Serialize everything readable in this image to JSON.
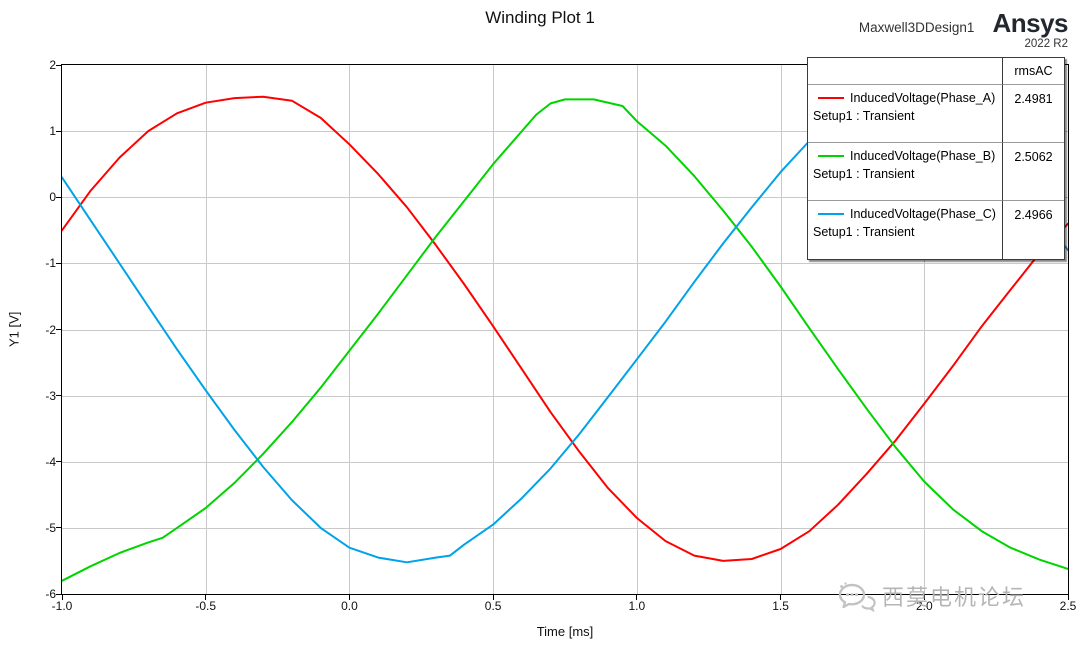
{
  "title": "Winding Plot 1",
  "header": {
    "design_name": "Maxwell3DDesign1",
    "brand": "Ansys",
    "version": "2022 R2"
  },
  "axes": {
    "x_title": "Time [ms]",
    "y_title": "Y1 [V]"
  },
  "legend": {
    "value_header": "rmsAC",
    "entries": [
      {
        "name": "InducedVoltage(Phase_A)",
        "setup": "Setup1 : Transient",
        "value": "2.4981",
        "color": "#ff0000"
      },
      {
        "name": "InducedVoltage(Phase_B)",
        "setup": "Setup1 : Transient",
        "value": "2.5062",
        "color": "#00d400"
      },
      {
        "name": "InducedVoltage(Phase_C)",
        "setup": "Setup1 : Transient",
        "value": "2.4966",
        "color": "#00a2e8"
      }
    ]
  },
  "watermark": {
    "text": "西莫电机论坛"
  },
  "chart_data": {
    "type": "line",
    "title": "Winding Plot 1",
    "xlabel": "Time [ms]",
    "ylabel": "Y1 [V]",
    "xlim": [
      -1.0,
      2.5
    ],
    "ylim": [
      -6,
      2
    ],
    "grid": true,
    "legend_position": "top-right",
    "x_ticks": {
      "values": [
        -1.0,
        -0.5,
        0.0,
        0.5,
        1.0,
        1.5,
        2.0,
        2.5
      ],
      "labels": [
        "-1.0",
        "-0.5",
        "0.0",
        "0.5",
        "1.0",
        "1.5",
        "2.0",
        "2.5"
      ]
    },
    "y_ticks": {
      "values": [
        2,
        1,
        0,
        -1,
        -2,
        -3,
        -4,
        -5,
        -6
      ],
      "labels": [
        "2",
        "1",
        "0",
        "-1",
        "-2",
        "-3",
        "-4",
        "-5",
        "-6"
      ]
    },
    "series": [
      {
        "name": "InducedVoltage(Phase_A)",
        "color": "#ff0000",
        "rmsAC": 2.4981,
        "points": [
          [
            -1.0,
            -0.5
          ],
          [
            -0.9,
            0.1
          ],
          [
            -0.8,
            0.6
          ],
          [
            -0.7,
            1.0
          ],
          [
            -0.6,
            1.27
          ],
          [
            -0.5,
            1.43
          ],
          [
            -0.4,
            1.5
          ],
          [
            -0.3,
            1.52
          ],
          [
            -0.2,
            1.46
          ],
          [
            -0.1,
            1.2
          ],
          [
            0.0,
            0.8
          ],
          [
            0.1,
            0.35
          ],
          [
            0.2,
            -0.15
          ],
          [
            0.3,
            -0.72
          ],
          [
            0.4,
            -1.32
          ],
          [
            0.5,
            -1.95
          ],
          [
            0.6,
            -2.6
          ],
          [
            0.7,
            -3.25
          ],
          [
            0.8,
            -3.85
          ],
          [
            0.9,
            -4.4
          ],
          [
            1.0,
            -4.85
          ],
          [
            1.1,
            -5.2
          ],
          [
            1.2,
            -5.42
          ],
          [
            1.3,
            -5.5
          ],
          [
            1.4,
            -5.47
          ],
          [
            1.5,
            -5.32
          ],
          [
            1.6,
            -5.05
          ],
          [
            1.7,
            -4.65
          ],
          [
            1.8,
            -4.18
          ],
          [
            1.9,
            -3.68
          ],
          [
            2.0,
            -3.12
          ],
          [
            2.1,
            -2.55
          ],
          [
            2.2,
            -1.95
          ],
          [
            2.3,
            -1.4
          ],
          [
            2.4,
            -0.85
          ],
          [
            2.5,
            -0.4
          ]
        ]
      },
      {
        "name": "InducedVoltage(Phase_B)",
        "color": "#00d400",
        "rmsAC": 2.5062,
        "points": [
          [
            -1.0,
            -5.8
          ],
          [
            -0.9,
            -5.58
          ],
          [
            -0.8,
            -5.38
          ],
          [
            -0.7,
            -5.22
          ],
          [
            -0.65,
            -5.15
          ],
          [
            -0.6,
            -5.0
          ],
          [
            -0.5,
            -4.7
          ],
          [
            -0.4,
            -4.32
          ],
          [
            -0.3,
            -3.88
          ],
          [
            -0.2,
            -3.4
          ],
          [
            -0.1,
            -2.88
          ],
          [
            0.0,
            -2.32
          ],
          [
            0.1,
            -1.76
          ],
          [
            0.2,
            -1.18
          ],
          [
            0.3,
            -0.6
          ],
          [
            0.4,
            -0.05
          ],
          [
            0.5,
            0.5
          ],
          [
            0.6,
            1.0
          ],
          [
            0.65,
            1.25
          ],
          [
            0.7,
            1.42
          ],
          [
            0.75,
            1.48
          ],
          [
            0.85,
            1.48
          ],
          [
            0.95,
            1.38
          ],
          [
            1.0,
            1.15
          ],
          [
            1.1,
            0.78
          ],
          [
            1.2,
            0.32
          ],
          [
            1.3,
            -0.2
          ],
          [
            1.4,
            -0.75
          ],
          [
            1.5,
            -1.35
          ],
          [
            1.6,
            -1.98
          ],
          [
            1.7,
            -2.6
          ],
          [
            1.8,
            -3.2
          ],
          [
            1.9,
            -3.78
          ],
          [
            2.0,
            -4.3
          ],
          [
            2.1,
            -4.72
          ],
          [
            2.2,
            -5.05
          ],
          [
            2.3,
            -5.3
          ],
          [
            2.4,
            -5.48
          ],
          [
            2.5,
            -5.62
          ]
        ]
      },
      {
        "name": "InducedVoltage(Phase_C)",
        "color": "#00a2e8",
        "rmsAC": 2.4966,
        "points": [
          [
            -1.0,
            0.3
          ],
          [
            -0.9,
            -0.35
          ],
          [
            -0.8,
            -1.0
          ],
          [
            -0.7,
            -1.65
          ],
          [
            -0.6,
            -2.3
          ],
          [
            -0.5,
            -2.92
          ],
          [
            -0.4,
            -3.52
          ],
          [
            -0.3,
            -4.08
          ],
          [
            -0.2,
            -4.58
          ],
          [
            -0.1,
            -5.0
          ],
          [
            0.0,
            -5.3
          ],
          [
            0.1,
            -5.45
          ],
          [
            0.2,
            -5.52
          ],
          [
            0.3,
            -5.45
          ],
          [
            0.35,
            -5.42
          ],
          [
            0.4,
            -5.25
          ],
          [
            0.5,
            -4.95
          ],
          [
            0.6,
            -4.55
          ],
          [
            0.7,
            -4.1
          ],
          [
            0.8,
            -3.58
          ],
          [
            0.9,
            -3.02
          ],
          [
            1.0,
            -2.45
          ],
          [
            1.1,
            -1.88
          ],
          [
            1.2,
            -1.28
          ],
          [
            1.3,
            -0.7
          ],
          [
            1.4,
            -0.15
          ],
          [
            1.5,
            0.38
          ],
          [
            1.6,
            0.85
          ],
          [
            1.7,
            1.22
          ],
          [
            1.8,
            1.44
          ],
          [
            1.9,
            1.52
          ],
          [
            2.0,
            1.45
          ],
          [
            2.1,
            1.2
          ],
          [
            2.2,
            0.8
          ],
          [
            2.3,
            0.3
          ],
          [
            2.4,
            -0.25
          ],
          [
            2.5,
            -0.8
          ]
        ]
      }
    ]
  }
}
